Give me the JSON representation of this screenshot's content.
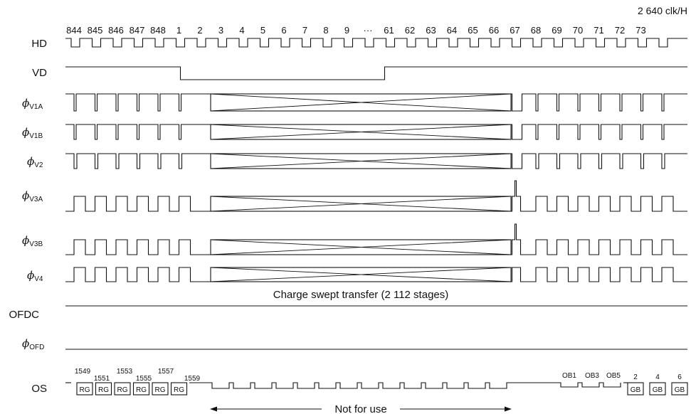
{
  "header": {
    "clock_label": "2 640 clk/H"
  },
  "hd_numbers": [
    "844",
    "845",
    "846",
    "847",
    "848",
    "1",
    "2",
    "3",
    "4",
    "5",
    "6",
    "7",
    "8",
    "9",
    "···",
    "61",
    "62",
    "63",
    "64",
    "65",
    "66",
    "67",
    "68",
    "69",
    "70",
    "71",
    "72",
    "73"
  ],
  "signals": [
    {
      "label": "HD",
      "sub": ""
    },
    {
      "label": "VD",
      "sub": ""
    },
    {
      "label": "ϕ",
      "sub": "V1A"
    },
    {
      "label": "ϕ",
      "sub": "V1B"
    },
    {
      "label": "ϕ",
      "sub": "V2"
    },
    {
      "label": "ϕ",
      "sub": "V3A"
    },
    {
      "label": "ϕ",
      "sub": "V3B"
    },
    {
      "label": "ϕ",
      "sub": "V4"
    },
    {
      "label": "OFDC",
      "sub": ""
    },
    {
      "label": "ϕ",
      "sub": "OFD"
    },
    {
      "label": "OS",
      "sub": ""
    }
  ],
  "notes": {
    "charge_sweep": "Charge swept transfer (2 112 stages)",
    "not_for_use": "Not for use"
  },
  "os_line_numbers": [
    "1549",
    "1551",
    "1553",
    "1555",
    "1557",
    "1559"
  ],
  "os_rg_label": "RG",
  "os_ob_labels": [
    "OB1",
    "OB3",
    "OB5"
  ],
  "os_gb_numbers": [
    "2",
    "4",
    "6"
  ],
  "os_gb_label": "GB"
}
